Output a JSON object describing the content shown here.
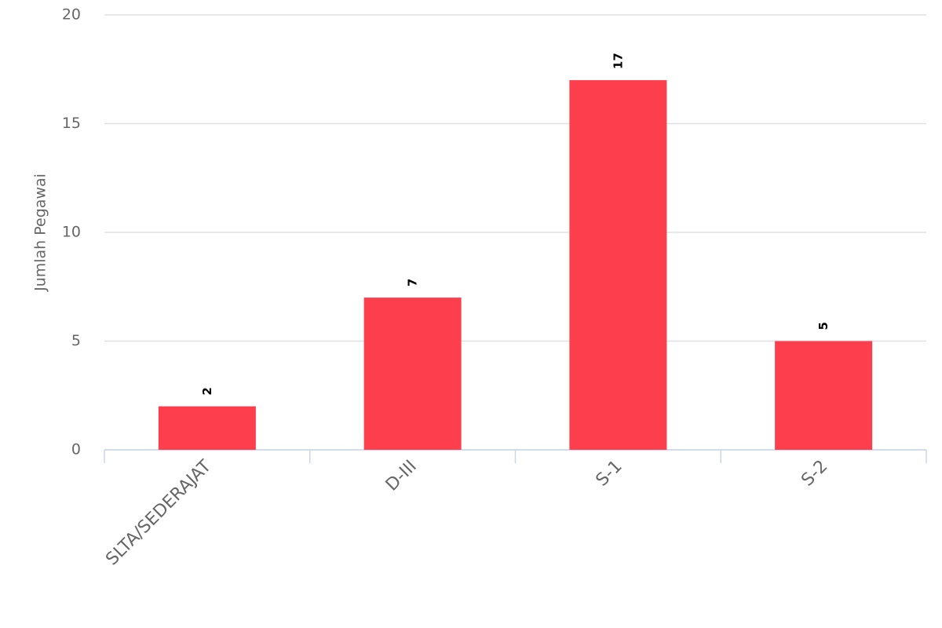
{
  "chart_data": {
    "type": "bar",
    "y_label": "Jumlah Pegawai",
    "categories": [
      "SLTA/SEDERAJAT",
      "D-III",
      "S-1",
      "S-2"
    ],
    "values": [
      2,
      7,
      17,
      5
    ],
    "color": "#fd3f4d",
    "ylim": [
      0,
      20
    ],
    "yticks": [
      0,
      5,
      10,
      15,
      20
    ],
    "grid": true
  }
}
